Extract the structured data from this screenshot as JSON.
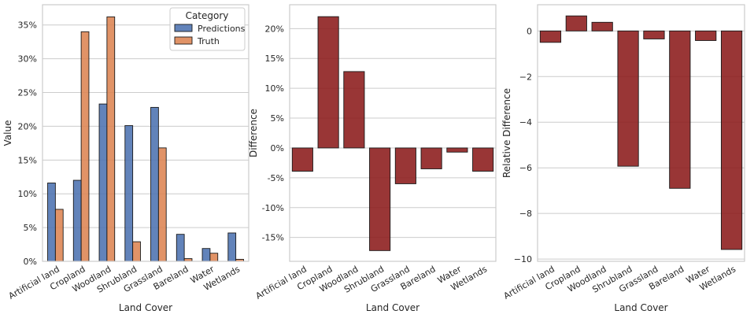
{
  "chart_data": [
    {
      "type": "bar",
      "title": "",
      "xlabel": "Land Cover",
      "ylabel": "Value",
      "categories": [
        "Artificial land",
        "Cropland",
        "Woodland",
        "Shrubland",
        "Grassland",
        "Bareland",
        "Water",
        "Wetlands"
      ],
      "series": [
        {
          "name": "Predictions",
          "color": "#4c72b0",
          "values": [
            0.116,
            0.12,
            0.233,
            0.201,
            0.228,
            0.04,
            0.019,
            0.042
          ]
        },
        {
          "name": "Truth",
          "color": "#dd8452",
          "values": [
            0.077,
            0.34,
            0.362,
            0.029,
            0.168,
            0.004,
            0.012,
            0.003
          ]
        }
      ],
      "ylim": [
        0,
        0.38
      ],
      "yticks": [
        0,
        0.05,
        0.1,
        0.15,
        0.2,
        0.25,
        0.3,
        0.35
      ],
      "ytick_labels": [
        "0%",
        "5%",
        "10%",
        "15%",
        "20%",
        "25%",
        "30%",
        "35%"
      ],
      "legend": {
        "title": "Category",
        "position": "top-right"
      },
      "grid": "y"
    },
    {
      "type": "bar",
      "title": "",
      "xlabel": "Land Cover",
      "ylabel": "Difference",
      "categories": [
        "Artificial land",
        "Cropland",
        "Woodland",
        "Shrubland",
        "Grassland",
        "Bareland",
        "Water",
        "Wetlands"
      ],
      "series": [
        {
          "color": "#8b1a1a",
          "values": [
            -0.039,
            0.22,
            0.128,
            -0.172,
            -0.06,
            -0.035,
            -0.007,
            -0.039
          ]
        }
      ],
      "ylim": [
        -0.19,
        0.24
      ],
      "yticks": [
        -0.15,
        -0.1,
        -0.05,
        0,
        0.05,
        0.1,
        0.15,
        0.2
      ],
      "ytick_labels": [
        "-15%",
        "-10%",
        "-5%",
        "0%",
        "5%",
        "10%",
        "15%",
        "20%"
      ],
      "grid": "y"
    },
    {
      "type": "bar",
      "title": "",
      "xlabel": "Land Cover",
      "ylabel": "Relative Difference",
      "categories": [
        "Artificial land",
        "Cropland",
        "Woodland",
        "Shrubland",
        "Grassland",
        "Bareland",
        "Water",
        "Wetlands"
      ],
      "series": [
        {
          "color": "#8b1a1a",
          "values": [
            -0.5,
            0.66,
            0.38,
            -5.93,
            -0.35,
            -6.9,
            -0.42,
            -9.58
          ]
        }
      ],
      "ylim": [
        -10.1,
        1.15
      ],
      "yticks": [
        -10,
        -8,
        -6,
        -4,
        -2,
        0
      ],
      "ytick_labels": [
        "−10",
        "−8",
        "−6",
        "−4",
        "−2",
        "0"
      ],
      "grid": "y"
    }
  ]
}
